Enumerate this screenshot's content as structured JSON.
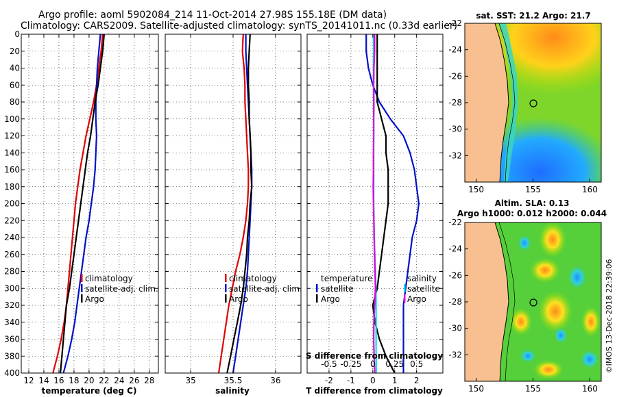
{
  "title_line1": "Argo profile: aoml 5902084_214 11-Oct-2014 27.98S 155.18E (DM data)",
  "title_line2": "Climatology: CARS2009. Satellite-adjusted climatology: synTS_20141011.nc (0.33d earlier)",
  "credit": "©IMOS 13-Dec-2018 22:39:06",
  "colors": {
    "climatology": "#e00000",
    "satellite": "#0010c8",
    "argo": "#000000",
    "temp_diff": "#00e0e0",
    "sal_diff": "#e000e0",
    "land": "#f8c090"
  },
  "chart_data": [
    {
      "type": "line",
      "id": "temperature",
      "xlabel": "temperature (deg C)",
      "xlim": [
        11,
        29.2
      ],
      "ylim": [
        400,
        0
      ],
      "xticks": [
        12,
        14,
        16,
        18,
        20,
        22,
        24,
        26,
        28
      ],
      "yticks": [
        0,
        20,
        40,
        60,
        80,
        100,
        120,
        140,
        160,
        180,
        200,
        220,
        240,
        260,
        280,
        300,
        320,
        340,
        360,
        380,
        400
      ],
      "grid": true,
      "legend": {
        "position": "center-right",
        "entries": [
          "climatology",
          "satellite-adj. clim.",
          "Argo"
        ]
      },
      "series": [
        {
          "name": "climatology",
          "color": "#e00000",
          "x": [
            21.8,
            21.6,
            21.3,
            21.0,
            20.6,
            20.1,
            19.6,
            19.2,
            18.8,
            18.5,
            18.2,
            18.0,
            17.8,
            17.6,
            17.4,
            17.2,
            17.0,
            16.7,
            16.3,
            15.8,
            15.2
          ],
          "y": [
            0,
            20,
            40,
            60,
            80,
            100,
            120,
            140,
            160,
            180,
            200,
            220,
            240,
            260,
            280,
            300,
            320,
            340,
            360,
            380,
            400
          ]
        },
        {
          "name": "satellite-adj. clim.",
          "color": "#0010c8",
          "x": [
            21.5,
            21.3,
            21.1,
            21.0,
            20.9,
            20.9,
            21.0,
            20.9,
            20.8,
            20.6,
            20.3,
            20.0,
            19.6,
            19.3,
            19.0,
            18.7,
            18.4,
            18.1,
            17.7,
            17.2,
            16.6
          ],
          "y": [
            0,
            20,
            40,
            60,
            80,
            100,
            120,
            140,
            160,
            180,
            200,
            220,
            240,
            260,
            280,
            300,
            320,
            340,
            360,
            380,
            400
          ]
        },
        {
          "name": "Argo",
          "color": "#000000",
          "x": [
            22.0,
            21.8,
            21.5,
            21.2,
            20.8,
            20.5,
            20.2,
            19.8,
            19.5,
            19.2,
            18.9,
            18.6,
            18.3,
            18.0,
            17.7,
            17.4,
            17.0,
            16.8,
            16.6,
            16.4,
            16.2
          ],
          "y": [
            0,
            20,
            40,
            60,
            80,
            100,
            120,
            140,
            160,
            180,
            200,
            220,
            240,
            260,
            280,
            300,
            320,
            340,
            360,
            380,
            400
          ]
        }
      ]
    },
    {
      "type": "line",
      "id": "salinity",
      "xlabel": "salinity",
      "xlim": [
        34.7,
        36.3
      ],
      "ylim": [
        400,
        0
      ],
      "xticks": [
        35,
        35.5,
        36
      ],
      "yticks": [
        0,
        20,
        40,
        60,
        80,
        100,
        120,
        140,
        160,
        180,
        200,
        220,
        240,
        260,
        280,
        300,
        320,
        340,
        360,
        380,
        400
      ],
      "grid": true,
      "legend": {
        "position": "center-right",
        "entries": [
          "climatology",
          "satellite-adj. clim.",
          "Argo"
        ]
      },
      "series": [
        {
          "name": "climatology",
          "color": "#e00000",
          "x": [
            35.62,
            35.61,
            35.63,
            35.64,
            35.64,
            35.65,
            35.66,
            35.67,
            35.68,
            35.68,
            35.67,
            35.65,
            35.62,
            35.58,
            35.53,
            35.49,
            35.45,
            35.42,
            35.39,
            35.36,
            35.33
          ],
          "y": [
            0,
            20,
            40,
            60,
            80,
            100,
            120,
            140,
            160,
            180,
            200,
            220,
            240,
            260,
            280,
            300,
            320,
            340,
            360,
            380,
            400
          ]
        },
        {
          "name": "satellite-adj. clim.",
          "color": "#0010c8",
          "x": [
            35.65,
            35.65,
            35.66,
            35.67,
            35.68,
            35.69,
            35.7,
            35.71,
            35.72,
            35.72,
            35.71,
            35.7,
            35.69,
            35.68,
            35.67,
            35.65,
            35.62,
            35.59,
            35.56,
            35.53,
            35.5
          ],
          "y": [
            0,
            20,
            40,
            60,
            80,
            100,
            120,
            140,
            160,
            180,
            200,
            220,
            240,
            260,
            280,
            300,
            320,
            340,
            360,
            380,
            400
          ]
        },
        {
          "name": "Argo",
          "color": "#000000",
          "x": [
            35.7,
            35.69,
            35.68,
            35.68,
            35.69,
            35.69,
            35.7,
            35.71,
            35.71,
            35.72,
            35.7,
            35.69,
            35.67,
            35.66,
            35.64,
            35.62,
            35.59,
            35.55,
            35.51,
            35.47,
            35.43
          ],
          "y": [
            0,
            20,
            40,
            60,
            80,
            100,
            120,
            140,
            160,
            180,
            200,
            220,
            240,
            260,
            280,
            300,
            320,
            340,
            360,
            380,
            400
          ]
        }
      ]
    },
    {
      "type": "line",
      "id": "difference",
      "xlabel": "T difference from climatology",
      "xlabel2": "S difference from climatology",
      "xlim": [
        -3,
        3.2
      ],
      "ylim": [
        400,
        0
      ],
      "xticks": [
        -2,
        -1,
        0,
        1,
        2
      ],
      "xticks_salinity": [
        -0.5,
        -0.25,
        0,
        0.25,
        0.5
      ],
      "yticks": [
        0,
        20,
        40,
        60,
        80,
        100,
        120,
        140,
        160,
        180,
        200,
        220,
        240,
        260,
        280,
        300,
        320,
        340,
        360,
        380,
        400
      ],
      "grid": true,
      "legend": {
        "position": "center",
        "temperature_title": "temperature",
        "salinity_title": "salinity",
        "entries": [
          "satellite",
          "Argo"
        ]
      },
      "series": [
        {
          "name": "temperature satellite",
          "color": "#0010c8",
          "x": [
            -0.3,
            -0.3,
            -0.2,
            0.0,
            0.3,
            0.8,
            1.4,
            1.7,
            1.9,
            2.0,
            2.1,
            2.0,
            1.8,
            1.7,
            1.6,
            1.5,
            1.4,
            1.4,
            1.4,
            1.4,
            1.4
          ],
          "y": [
            0,
            20,
            40,
            60,
            80,
            100,
            120,
            140,
            160,
            180,
            200,
            220,
            240,
            260,
            280,
            300,
            320,
            340,
            360,
            380,
            400
          ]
        },
        {
          "name": "temperature Argo",
          "color": "#000000",
          "x": [
            0.2,
            0.2,
            0.2,
            0.2,
            0.2,
            0.4,
            0.6,
            0.6,
            0.7,
            0.7,
            0.7,
            0.6,
            0.5,
            0.4,
            0.3,
            0.2,
            0.0,
            0.1,
            0.3,
            0.6,
            1.0
          ],
          "y": [
            0,
            20,
            40,
            60,
            80,
            100,
            120,
            140,
            160,
            180,
            200,
            220,
            240,
            260,
            280,
            300,
            320,
            340,
            360,
            380,
            400
          ]
        },
        {
          "name": "salinity satellite",
          "color": "#00e0e0",
          "x": [
            0.03,
            0.04,
            0.03,
            0.03,
            0.04,
            0.04,
            0.04,
            0.04,
            0.04,
            0.04,
            0.04,
            0.05,
            0.07,
            0.09,
            0.12,
            0.14,
            0.15,
            0.15,
            0.15,
            0.15,
            0.16
          ],
          "y": [
            0,
            20,
            40,
            60,
            80,
            100,
            120,
            140,
            160,
            180,
            200,
            220,
            240,
            260,
            280,
            300,
            320,
            340,
            360,
            380,
            400
          ]
        },
        {
          "name": "salinity Argo",
          "color": "#e000e0",
          "x": [
            0.08,
            0.08,
            0.05,
            0.04,
            0.05,
            0.04,
            0.04,
            0.03,
            0.03,
            0.02,
            0.03,
            0.05,
            0.06,
            0.08,
            0.1,
            0.12,
            0.08,
            0.05,
            0.04,
            0.06,
            0.09
          ],
          "y": [
            0,
            20,
            40,
            60,
            80,
            100,
            120,
            140,
            160,
            180,
            200,
            220,
            240,
            260,
            280,
            300,
            320,
            340,
            360,
            380,
            400
          ]
        }
      ]
    },
    {
      "type": "heatmap",
      "id": "sst_map",
      "title": "sat. SST: 21.2 Argo: 21.7",
      "xlim": [
        149,
        161
      ],
      "ylim": [
        -34,
        -22
      ],
      "xticks": [
        150,
        155,
        160
      ],
      "yticks": [
        -22,
        -24,
        -26,
        -28,
        -30,
        -32
      ],
      "profile_location": {
        "lon": 155.18,
        "lat": -27.98
      }
    },
    {
      "type": "heatmap",
      "id": "sla_map",
      "title": "Altim. SLA: 0.13",
      "subtitle": "Argo h1000: 0.012 h2000: 0.044",
      "xlim": [
        149,
        161
      ],
      "ylim": [
        -34,
        -22
      ],
      "xticks": [
        150,
        155,
        160
      ],
      "yticks": [
        -22,
        -24,
        -26,
        -28,
        -30,
        -32
      ],
      "profile_location": {
        "lon": 155.18,
        "lat": -27.98
      }
    }
  ]
}
